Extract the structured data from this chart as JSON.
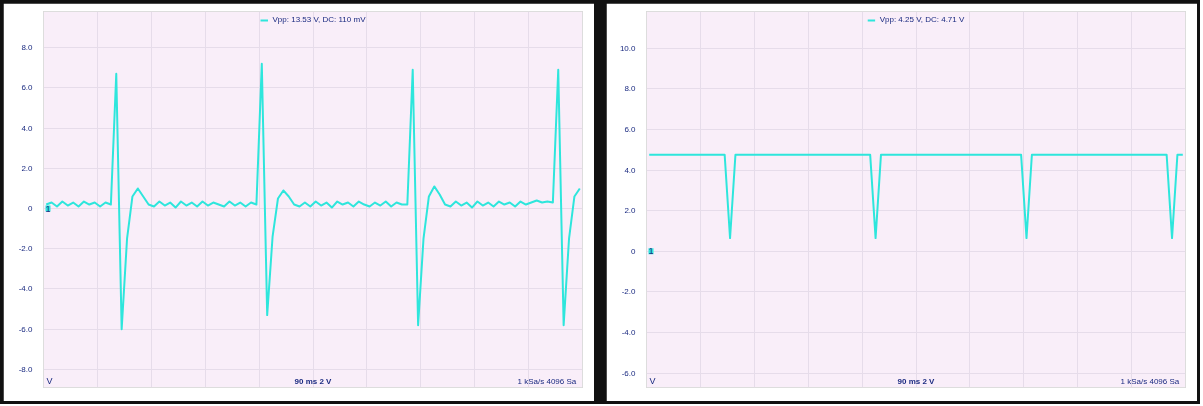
{
  "chart_data": [
    {
      "type": "line",
      "ylabel": "V",
      "categories": [
        null,
        null,
        null,
        null,
        null,
        null,
        null,
        null,
        null,
        null,
        null,
        null,
        null,
        null,
        null,
        null,
        null,
        null,
        null,
        null,
        null,
        null,
        null,
        null,
        null,
        null,
        null,
        null,
        null,
        null,
        null,
        null,
        null,
        null,
        null,
        null,
        null,
        null,
        null,
        null,
        null,
        null,
        null,
        null,
        null,
        null,
        null,
        null,
        null,
        null,
        null,
        null,
        null,
        null,
        null,
        null,
        null,
        null,
        null,
        null,
        null,
        null,
        null,
        null,
        null,
        null,
        null,
        null,
        null,
        null,
        null,
        null,
        null,
        null,
        null,
        null,
        null,
        null,
        null,
        null,
        null,
        null,
        null,
        null,
        null,
        null,
        null,
        null,
        null,
        null,
        null,
        null,
        null,
        null,
        null,
        null,
        null,
        null,
        null,
        null
      ],
      "series": [
        {
          "name": "Vpp: 13.53 V, DC: 110 mV",
          "color": "#2ee6dc",
          "values": [
            0.2,
            0.3,
            0.1,
            0.35,
            0.15,
            0.3,
            0.1,
            0.35,
            0.2,
            0.3,
            0.1,
            0.3,
            0.2,
            6.7,
            -6.0,
            -1.5,
            0.6,
            1.0,
            0.6,
            0.2,
            0.1,
            0.35,
            0.15,
            0.3,
            0.05,
            0.35,
            0.15,
            0.3,
            0.1,
            0.35,
            0.15,
            0.3,
            0.2,
            0.1,
            0.35,
            0.15,
            0.3,
            0.1,
            0.3,
            0.2,
            7.2,
            -5.3,
            -1.4,
            0.5,
            0.9,
            0.6,
            0.2,
            0.1,
            0.3,
            0.1,
            0.35,
            0.15,
            0.3,
            0.05,
            0.35,
            0.2,
            0.3,
            0.1,
            0.35,
            0.2,
            0.1,
            0.3,
            0.15,
            0.35,
            0.1,
            0.3,
            0.2,
            0.2,
            6.9,
            -5.8,
            -1.5,
            0.6,
            1.1,
            0.7,
            0.2,
            0.1,
            0.35,
            0.15,
            0.3,
            0.05,
            0.35,
            0.15,
            0.3,
            0.1,
            0.35,
            0.2,
            0.3,
            0.1,
            0.35,
            0.2,
            0.3,
            0.4,
            0.3,
            0.35,
            0.3,
            6.9,
            -5.8,
            -1.5,
            0.6,
            1.0
          ]
        }
      ],
      "ylim": [
        -8.9,
        9.8
      ],
      "yticks": [
        {
          "value": 8,
          "label": "8.0"
        },
        {
          "value": 6,
          "label": "6.0"
        },
        {
          "value": 4,
          "label": "4.0"
        },
        {
          "value": 2,
          "label": "2.0"
        },
        0,
        {
          "value": -2,
          "label": "-2.0"
        },
        {
          "value": -4,
          "label": "-4.0"
        },
        {
          "value": -6,
          "label": "-6.0"
        },
        {
          "value": -8,
          "label": "-8.0"
        }
      ],
      "grid": true,
      "legend": "top",
      "line_style": "solid",
      "annotations": [
        {
          "text": "1",
          "y": 0
        },
        "90 ms 2 V",
        "1 kSa/s  4096 Sa"
      ]
    },
    {
      "type": "line",
      "ylabel": "V",
      "categories": [
        null,
        null,
        null,
        null,
        null,
        null,
        null,
        null,
        null,
        null,
        null,
        null,
        null,
        null,
        null,
        null,
        null,
        null,
        null,
        null,
        null,
        null,
        null,
        null,
        null,
        null,
        null,
        null,
        null,
        null,
        null,
        null,
        null,
        null,
        null,
        null,
        null,
        null,
        null,
        null,
        null,
        null,
        null,
        null,
        null,
        null,
        null,
        null,
        null,
        null,
        null,
        null,
        null,
        null,
        null,
        null,
        null,
        null,
        null,
        null,
        null,
        null,
        null,
        null,
        null,
        null,
        null,
        null,
        null,
        null,
        null,
        null,
        null,
        null,
        null,
        null,
        null,
        null,
        null,
        null,
        null,
        null,
        null,
        null,
        null,
        null,
        null,
        null,
        null,
        null,
        null,
        null,
        null,
        null,
        null,
        null,
        null,
        null,
        null,
        null
      ],
      "series": [
        {
          "name": "Vpp: 4.25 V, DC: 4.71 V",
          "color": "#2ee6dc",
          "values": [
            4.75,
            4.75,
            4.75,
            4.75,
            4.75,
            4.75,
            4.75,
            4.75,
            4.75,
            4.75,
            4.75,
            4.75,
            4.75,
            4.75,
            4.75,
            0.65,
            4.75,
            4.75,
            4.75,
            4.75,
            4.75,
            4.75,
            4.75,
            4.75,
            4.75,
            4.75,
            4.75,
            4.75,
            4.75,
            4.75,
            4.75,
            4.75,
            4.75,
            4.75,
            4.75,
            4.75,
            4.75,
            4.75,
            4.75,
            4.75,
            4.75,
            4.75,
            0.65,
            4.75,
            4.75,
            4.75,
            4.75,
            4.75,
            4.75,
            4.75,
            4.75,
            4.75,
            4.75,
            4.75,
            4.75,
            4.75,
            4.75,
            4.75,
            4.75,
            4.75,
            4.75,
            4.75,
            4.75,
            4.75,
            4.75,
            4.75,
            4.75,
            4.75,
            4.75,
            4.75,
            0.65,
            4.75,
            4.75,
            4.75,
            4.75,
            4.75,
            4.75,
            4.75,
            4.75,
            4.75,
            4.75,
            4.75,
            4.75,
            4.75,
            4.75,
            4.75,
            4.75,
            4.75,
            4.75,
            4.75,
            4.75,
            4.75,
            4.75,
            4.75,
            4.75,
            4.75,
            4.75,
            0.65,
            4.75,
            4.75
          ]
        }
      ],
      "ylim": [
        -6.7,
        11.8
      ],
      "yticks": [
        {
          "value": 10,
          "label": "10.0"
        },
        {
          "value": 8,
          "label": "8.0"
        },
        {
          "value": 6,
          "label": "6.0"
        },
        {
          "value": 4,
          "label": "4.0"
        },
        {
          "value": 2,
          "label": "2.0"
        },
        0,
        {
          "value": -2,
          "label": "-2.0"
        },
        {
          "value": -4,
          "label": "-4.0"
        },
        {
          "value": -6,
          "label": "-6.0"
        }
      ],
      "grid": true,
      "legend": "top",
      "line_style": "solid",
      "annotations": [
        {
          "text": "1",
          "y": 0
        },
        "90 ms 2 V",
        "1 kSa/s  4096 Sa"
      ]
    }
  ]
}
